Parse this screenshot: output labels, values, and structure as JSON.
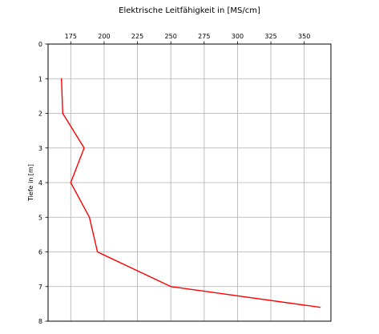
{
  "chart_data": {
    "type": "line",
    "title": "Elektrische Leitfähigkeit in [MS/cm]",
    "xlabel": "",
    "ylabel": "Tiefe in [m]",
    "x_axis_position": "top",
    "y_axis_inverted": true,
    "xlim": [
      158,
      370
    ],
    "ylim": [
      0,
      8
    ],
    "x_ticks": [
      175,
      200,
      225,
      250,
      275,
      300,
      325,
      350
    ],
    "y_ticks": [
      0,
      1,
      2,
      3,
      4,
      5,
      6,
      7,
      8
    ],
    "grid": true,
    "series": [
      {
        "color": "#ff0000",
        "points": [
          {
            "x": 168,
            "y": 1.0
          },
          {
            "x": 169,
            "y": 2.0
          },
          {
            "x": 185,
            "y": 3.0
          },
          {
            "x": 175,
            "y": 4.0
          },
          {
            "x": 189,
            "y": 5.0
          },
          {
            "x": 195,
            "y": 6.0
          },
          {
            "x": 250,
            "y": 7.0
          },
          {
            "x": 362,
            "y": 7.6
          }
        ]
      }
    ]
  }
}
